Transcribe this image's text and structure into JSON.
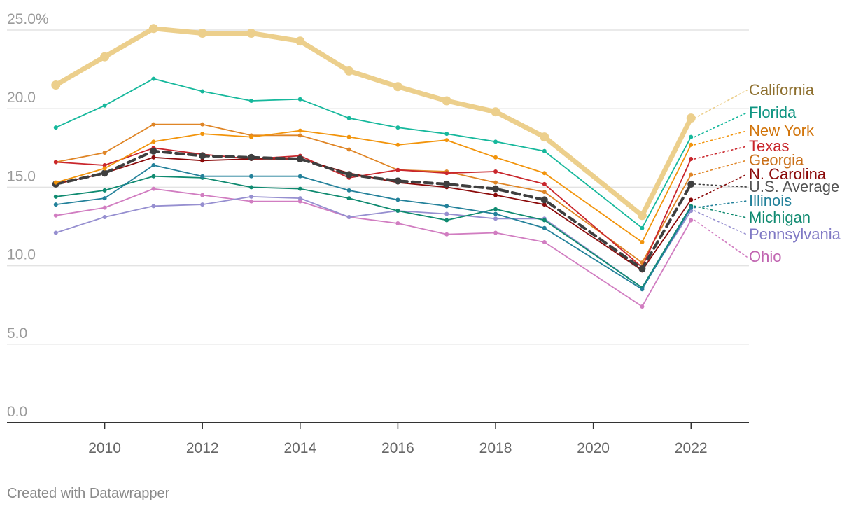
{
  "chart_data": {
    "type": "line",
    "title": "",
    "xlabel": "",
    "ylabel": "",
    "x": [
      2009,
      2010,
      2011,
      2012,
      2013,
      2014,
      2015,
      2016,
      2017,
      2018,
      2019,
      2021,
      2022
    ],
    "xticks": [
      "2010",
      "2012",
      "2014",
      "2016",
      "2018",
      "2020",
      "2022"
    ],
    "yticks": [
      "25.0%",
      "20.0",
      "15.0",
      "10.0",
      "5.0",
      "0.0"
    ],
    "ylim": [
      0,
      25
    ],
    "xlim": [
      2008.0,
      2023.2
    ],
    "grid": true,
    "legend": "direct labels at line ends",
    "series": [
      {
        "name": "Ohio",
        "color": "#d17dc1",
        "values": [
          13.2,
          13.7,
          14.9,
          14.5,
          14.1,
          14.1,
          13.1,
          12.7,
          12.0,
          12.1,
          11.5,
          7.4,
          12.9
        ]
      },
      {
        "name": "Pennsylvania",
        "color": "#968fd0",
        "values": [
          12.1,
          13.1,
          13.8,
          13.9,
          14.4,
          14.3,
          13.1,
          13.5,
          13.3,
          13.0,
          13.0,
          8.6,
          13.5
        ]
      },
      {
        "name": "Michigan",
        "color": "#0f8a70",
        "values": [
          14.4,
          14.8,
          15.7,
          15.6,
          15.0,
          14.9,
          14.3,
          13.5,
          12.9,
          13.6,
          12.9,
          8.6,
          13.8
        ]
      },
      {
        "name": "Illinois",
        "color": "#23819a",
        "values": [
          13.9,
          14.3,
          16.4,
          15.7,
          15.7,
          15.7,
          14.8,
          14.2,
          13.8,
          13.3,
          12.4,
          8.5,
          13.7
        ]
      },
      {
        "name": "Georgia",
        "color": "#df8526",
        "values": [
          16.6,
          17.2,
          19.0,
          19.0,
          18.3,
          18.3,
          17.4,
          16.1,
          16.0,
          15.3,
          14.7,
          10.2,
          15.8
        ]
      },
      {
        "name": "Texas",
        "color": "#c9262c",
        "values": [
          16.6,
          16.4,
          17.5,
          17.1,
          16.8,
          17.0,
          15.6,
          16.1,
          15.9,
          16.0,
          15.2,
          9.9,
          16.8
        ]
      },
      {
        "name": "N. Carolina",
        "color": "#8b0a0a",
        "values": [
          15.2,
          15.9,
          16.9,
          16.7,
          16.8,
          16.8,
          15.9,
          15.3,
          15.0,
          14.5,
          13.9,
          9.7,
          14.2
        ]
      },
      {
        "name": "U.S. Average",
        "color": "#3f3f3f",
        "values": [
          15.2,
          15.9,
          17.3,
          17.0,
          16.9,
          16.8,
          15.8,
          15.4,
          15.2,
          14.9,
          14.2,
          9.8,
          15.2
        ]
      },
      {
        "name": "New York",
        "color": "#f2940b",
        "values": [
          15.3,
          16.2,
          17.9,
          18.4,
          18.2,
          18.6,
          18.2,
          17.7,
          18.0,
          16.9,
          15.9,
          11.5,
          17.7
        ]
      },
      {
        "name": "Florida",
        "color": "#16b89c",
        "values": [
          18.8,
          20.2,
          21.9,
          21.1,
          20.5,
          20.6,
          19.4,
          18.8,
          18.4,
          17.9,
          17.3,
          12.4,
          18.2
        ]
      },
      {
        "name": "California",
        "color": "#eccf8c",
        "values": [
          21.5,
          23.3,
          25.1,
          24.8,
          24.8,
          24.3,
          22.4,
          21.4,
          20.5,
          19.8,
          18.2,
          13.2,
          19.4
        ]
      }
    ],
    "end_labels": [
      {
        "series": "California",
        "text": "California",
        "color": "#8d6f2e"
      },
      {
        "series": "Florida",
        "text": "Florida",
        "color": "#0f9582"
      },
      {
        "series": "New York",
        "text": "New York",
        "color": "#d1740a"
      },
      {
        "series": "Texas",
        "text": "Texas",
        "color": "#c9262c"
      },
      {
        "series": "Georgia",
        "text": "Georgia",
        "color": "#c96f18"
      },
      {
        "series": "N. Carolina",
        "text": "N. Carolina",
        "color": "#8b0a0a"
      },
      {
        "series": "U.S. Average",
        "text": "U.S. Average",
        "color": "#555555"
      },
      {
        "series": "Illinois",
        "text": "Illinois",
        "color": "#23819a"
      },
      {
        "series": "Michigan",
        "text": "Michigan",
        "color": "#0f8a70"
      },
      {
        "series": "Pennsylvania",
        "text": "Pennsylvania",
        "color": "#7f78c4"
      },
      {
        "series": "Ohio",
        "text": "Ohio",
        "color": "#c165b1"
      }
    ]
  },
  "credit": "Created with Datawrapper"
}
